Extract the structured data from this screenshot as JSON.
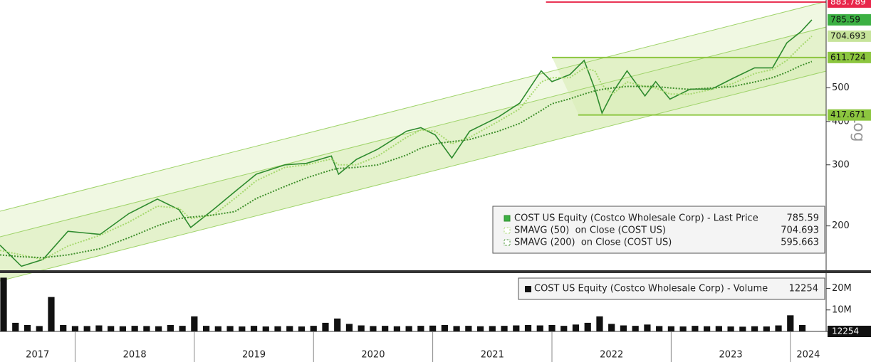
{
  "chart_data": {
    "type": "line",
    "log_scale": true,
    "axis_label": "Log",
    "xlim": [
      2017.37,
      2024.3
    ],
    "ylim": [
      149,
      896
    ],
    "xticks": [
      2017,
      2018,
      2019,
      2020,
      2021,
      2022,
      2023,
      2024
    ],
    "yticks": [
      200,
      300,
      400,
      500
    ],
    "x": [
      2017.37,
      2017.55,
      2017.73,
      2017.94,
      2018.21,
      2018.45,
      2018.69,
      2018.87,
      2018.97,
      2019.16,
      2019.34,
      2019.52,
      2019.76,
      2019.94,
      2020.15,
      2020.21,
      2020.36,
      2020.54,
      2020.78,
      2020.9,
      2021.02,
      2021.16,
      2021.31,
      2021.55,
      2021.73,
      2021.91,
      2022.0,
      2022.15,
      2022.27,
      2022.36,
      2022.42,
      2022.51,
      2022.63,
      2022.78,
      2022.87,
      2022.99,
      2023.16,
      2023.34,
      2023.52,
      2023.7,
      2023.85,
      2023.97,
      2024.09,
      2024.18
    ],
    "series": [
      {
        "name": "COST US Equity (Costco Wholesale Corp) - Last Price",
        "color": "#2e8b2e",
        "tag_color": "#3cb043",
        "values": [
          176,
          153,
          160,
          193,
          189,
          217,
          239,
          223,
          198,
          223,
          251,
          282,
          300,
          303,
          318,
          282,
          311,
          333,
          375,
          384,
          366,
          314,
          375,
          412,
          452,
          560,
          521,
          546,
          600,
          496,
          423,
          486,
          560,
          474,
          521,
          464,
          496,
          496,
          533,
          571,
          571,
          674,
          727,
          785.59
        ]
      },
      {
        "name": "SMAVG (50)  on Close (COST US)",
        "color": "#a6d86e",
        "tag_color": "#c6e49b",
        "values": [
          170,
          165,
          160,
          175,
          188,
          205,
          228,
          225,
          210,
          215,
          240,
          270,
          295,
          300,
          312,
          300,
          300,
          318,
          360,
          378,
          375,
          345,
          360,
          400,
          435,
          520,
          535,
          535,
          570,
          560,
          510,
          480,
          520,
          505,
          500,
          480,
          480,
          495,
          515,
          550,
          565,
          600,
          660,
          704.693
        ]
      },
      {
        "name": "SMAVG (200)  on Close (COST US)",
        "color": "#3f8f2c",
        "tag_color": "#8cc63f",
        "values": [
          165,
          163,
          162,
          165,
          172,
          185,
          200,
          210,
          212,
          215,
          220,
          240,
          260,
          275,
          290,
          293,
          295,
          300,
          320,
          335,
          345,
          350,
          355,
          375,
          395,
          430,
          450,
          465,
          480,
          490,
          495,
          500,
          505,
          505,
          505,
          500,
          495,
          500,
          505,
          520,
          535,
          555,
          580,
          595.663
        ]
      }
    ],
    "levels": [
      {
        "value": 883.789,
        "color": "#e8264a",
        "start": 2021.95
      },
      {
        "value": 611.724,
        "color": "#8cc63f",
        "start": 2022.0
      },
      {
        "value": 417.671,
        "color": "#8cc63f",
        "start": 2022.22
      }
    ],
    "volume": {
      "type": "bar",
      "name": "COST US Equity (Costco Wholesale Corp) - Volume",
      "color": "#111111",
      "last_value": 12254,
      "ylim": [
        0,
        25.8
      ],
      "yticks": [
        {
          "value": 10,
          "label": "10M"
        },
        {
          "value": 20,
          "label": "20M"
        }
      ],
      "x": [
        2017.4,
        2017.5,
        2017.6,
        2017.7,
        2017.8,
        2017.9,
        2018.0,
        2018.1,
        2018.2,
        2018.3,
        2018.4,
        2018.5,
        2018.6,
        2018.7,
        2018.8,
        2018.9,
        2019.0,
        2019.1,
        2019.2,
        2019.3,
        2019.4,
        2019.5,
        2019.6,
        2019.7,
        2019.8,
        2019.9,
        2020.0,
        2020.1,
        2020.2,
        2020.3,
        2020.4,
        2020.5,
        2020.6,
        2020.7,
        2020.8,
        2020.9,
        2021.0,
        2021.1,
        2021.2,
        2021.3,
        2021.4,
        2021.5,
        2021.6,
        2021.7,
        2021.8,
        2021.9,
        2022.0,
        2022.1,
        2022.2,
        2022.3,
        2022.4,
        2022.5,
        2022.6,
        2022.7,
        2022.8,
        2022.9,
        2023.0,
        2023.1,
        2023.2,
        2023.3,
        2023.4,
        2023.5,
        2023.6,
        2023.7,
        2023.8,
        2023.9,
        2024.0,
        2024.1
      ],
      "values": [
        25,
        4,
        3,
        2.5,
        16,
        3,
        2.5,
        2.5,
        2.8,
        2.5,
        2.4,
        2.6,
        2.5,
        2.4,
        3,
        2.6,
        7,
        2.6,
        2.4,
        2.5,
        2.3,
        2.6,
        2.3,
        2.4,
        2.5,
        2.3,
        2.6,
        4,
        6,
        3.5,
        2.8,
        2.5,
        2.6,
        2.4,
        2.5,
        2.6,
        2.7,
        3,
        2.5,
        2.6,
        2.4,
        2.5,
        2.6,
        2.8,
        3,
        2.8,
        3,
        2.6,
        3.2,
        4,
        7,
        3.5,
        2.8,
        2.6,
        3.2,
        2.5,
        2.4,
        2.3,
        2.6,
        2.4,
        2.5,
        2.3,
        2.2,
        2.4,
        2.3,
        2.8,
        7.5,
        3
      ]
    }
  }
}
